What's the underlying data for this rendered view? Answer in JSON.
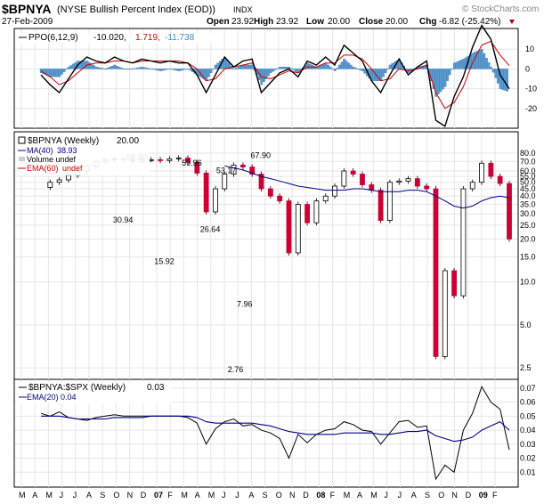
{
  "header": {
    "symbol": "$BPNYA",
    "name": "(NYSE Bullish Percent Index (EOD))",
    "exchange": "INDX",
    "date": "27-Feb-2009",
    "watermark": "© StockCharts.com",
    "quote": {
      "open_label": "Open",
      "open": "23.92",
      "high_label": "High",
      "high": "23.92",
      "low_label": "Low",
      "low": "20.00",
      "close_label": "Close",
      "close": "20.00",
      "chg_label": "Chg",
      "chg": "-6.82 (-25.42%)"
    }
  },
  "chart_data": [
    {
      "type": "line",
      "panel": "ppo",
      "legend": {
        "name": "PPO(6,12,9)",
        "v1": "-10.020,",
        "v2": "1.719,",
        "v3": "-11.738"
      },
      "ylim": [
        -30,
        20
      ],
      "yticks": [
        "10",
        "0",
        "-10",
        "-20"
      ],
      "x": [
        0,
        2,
        4,
        6,
        8,
        10,
        12,
        14,
        16,
        18,
        20,
        22,
        24,
        26,
        28,
        30,
        32,
        34,
        36,
        38,
        40,
        42,
        44,
        46,
        48,
        50,
        52,
        54,
        56,
        58,
        60,
        62,
        64,
        66,
        68,
        70,
        72,
        74,
        76,
        78,
        80,
        82,
        84,
        86,
        88,
        90,
        92,
        94,
        96,
        98,
        100,
        102
      ],
      "series": [
        {
          "role": "ppo",
          "color": "#000000",
          "values": [
            -3,
            -8,
            -12,
            -5,
            2,
            6,
            4,
            3,
            6,
            4,
            3,
            5,
            4,
            3,
            4,
            3,
            3,
            -3,
            -12,
            -3,
            6,
            1,
            4,
            5,
            -12,
            -7,
            -2,
            0,
            -4,
            4,
            2,
            6,
            2,
            12,
            8,
            4,
            -6,
            -12,
            -3,
            5,
            -3,
            1,
            4,
            -26,
            -29,
            -14,
            -4,
            11,
            22,
            15,
            -3,
            -10
          ]
        },
        {
          "role": "signal",
          "color": "#cc0000",
          "values": [
            -1,
            -4,
            -8,
            -6,
            -2,
            2,
            3,
            3,
            4,
            4,
            3,
            4,
            4,
            4,
            4,
            4,
            3,
            0,
            -6,
            -5,
            0,
            1,
            2,
            3,
            -4,
            -5,
            -3,
            -1,
            -2,
            1,
            1,
            3,
            3,
            7,
            7,
            5,
            0,
            -6,
            -5,
            0,
            -1,
            0,
            2,
            -12,
            -20,
            -17,
            -9,
            3,
            12,
            14,
            7,
            1.7
          ]
        }
      ],
      "histogram_color": "#5b9bd5"
    },
    {
      "type": "bar",
      "panel": "price",
      "legend": {
        "name": "$BPNYA (Weekly)",
        "value": "20.00",
        "ma_label": "MA(40)",
        "ma_value": "38.93",
        "vol_label": "Volume undef",
        "ema_label": "EMA(60)",
        "ema_value": "undef"
      },
      "yscale": "log",
      "ylim": [
        2.2,
        80
      ],
      "yticks": [
        "80.0",
        "70.0",
        "60.0",
        "55.0",
        "50.0",
        "45.0",
        "40.0",
        "35.0",
        "30.0",
        "25.0",
        "20.0",
        "15.0",
        "10.0",
        "5.0",
        "2.5"
      ],
      "x": [
        0,
        2,
        4,
        6,
        8,
        10,
        12,
        14,
        16,
        18,
        20,
        22,
        24,
        26,
        28,
        30,
        32,
        34,
        36,
        38,
        40,
        42,
        44,
        46,
        48,
        50,
        52,
        54,
        56,
        58,
        60,
        62,
        64,
        66,
        68,
        70,
        72,
        74,
        76,
        78,
        80,
        82,
        84,
        86,
        88,
        90,
        92,
        94,
        96,
        98,
        100,
        102
      ],
      "close": [
        46,
        50,
        52,
        56,
        60,
        65,
        70,
        72,
        73,
        72,
        70,
        72,
        72,
        71,
        73,
        74,
        69,
        58,
        31,
        45,
        57,
        66,
        64,
        57,
        45,
        40,
        37,
        16,
        35,
        26,
        37,
        40,
        47,
        60,
        57,
        48,
        44,
        27,
        50,
        51,
        53,
        47,
        45,
        3,
        12,
        8,
        45,
        50,
        68,
        55,
        49,
        20
      ],
      "ma40": [
        null,
        null,
        null,
        null,
        null,
        null,
        null,
        null,
        null,
        null,
        null,
        null,
        null,
        null,
        null,
        null,
        null,
        null,
        null,
        null,
        65,
        63,
        61,
        58,
        55,
        53,
        51,
        49,
        47,
        46,
        45,
        44,
        44,
        44,
        45,
        45,
        44,
        43,
        43,
        43,
        44,
        44,
        43,
        40,
        37,
        34,
        33,
        34,
        37,
        39,
        40,
        38.93
      ],
      "annotations": [
        {
          "x": 18,
          "y": 30.94,
          "label": "30.94"
        },
        {
          "x": 21,
          "y": 66.2,
          "label": "66.20"
        },
        {
          "x": 27,
          "y": 15.92,
          "label": "15.92"
        },
        {
          "x": 33,
          "y": 59.96,
          "label": "59.96"
        },
        {
          "x": 37,
          "y": 26.64,
          "label": "26.64"
        },
        {
          "x": 40.5,
          "y": 53.17,
          "label": "53.17"
        },
        {
          "x": 43,
          "y": 2.76,
          "label": "2.76"
        },
        {
          "x": 45,
          "y": 7.96,
          "label": "7.96"
        },
        {
          "x": 48,
          "y": 67.9,
          "label": "67.90"
        }
      ]
    },
    {
      "type": "line",
      "panel": "ratio",
      "legend": {
        "name": "$BPNYA:$SPX (Weekly)",
        "value": "0.03",
        "ema_label": "EMA(20)",
        "ema_value": "0.04"
      },
      "ylim": [
        0,
        0.075
      ],
      "yticks": [
        "0.07",
        "0.06",
        "0.05",
        "0.04",
        "0.03",
        "0.02",
        "0.01"
      ],
      "x": [
        0,
        2,
        4,
        6,
        8,
        10,
        12,
        14,
        16,
        18,
        20,
        22,
        24,
        26,
        28,
        30,
        32,
        34,
        36,
        38,
        40,
        42,
        44,
        46,
        48,
        50,
        52,
        54,
        56,
        58,
        60,
        62,
        64,
        66,
        68,
        70,
        72,
        74,
        76,
        78,
        80,
        82,
        84,
        86,
        88,
        90,
        92,
        94,
        96,
        98,
        100,
        102
      ],
      "series": [
        {
          "role": "ratio",
          "color": "#000000",
          "values": [
            0.052,
            0.05,
            0.053,
            0.049,
            0.048,
            0.047,
            0.049,
            0.05,
            0.051,
            0.05,
            0.05,
            0.05,
            0.05,
            0.05,
            0.05,
            0.05,
            0.049,
            0.045,
            0.03,
            0.041,
            0.046,
            0.048,
            0.043,
            0.044,
            0.04,
            0.038,
            0.034,
            0.02,
            0.037,
            0.031,
            0.037,
            0.04,
            0.041,
            0.046,
            0.044,
            0.04,
            0.039,
            0.03,
            0.038,
            0.046,
            0.047,
            0.042,
            0.043,
            0.005,
            0.015,
            0.01,
            0.04,
            0.052,
            0.071,
            0.06,
            0.055,
            0.026
          ]
        },
        {
          "role": "ema20",
          "color": "#00008b",
          "values": [
            0.05,
            0.05,
            0.05,
            0.049,
            0.048,
            0.048,
            0.048,
            0.048,
            0.049,
            0.049,
            0.049,
            0.049,
            0.05,
            0.05,
            0.05,
            0.05,
            0.05,
            0.049,
            0.046,
            0.045,
            0.045,
            0.045,
            0.045,
            0.045,
            0.044,
            0.043,
            0.041,
            0.039,
            0.038,
            0.037,
            0.037,
            0.037,
            0.037,
            0.038,
            0.038,
            0.038,
            0.038,
            0.037,
            0.037,
            0.038,
            0.039,
            0.039,
            0.04,
            0.036,
            0.034,
            0.032,
            0.033,
            0.035,
            0.04,
            0.043,
            0.046,
            0.04
          ]
        }
      ]
    }
  ],
  "xaxis": {
    "labels": [
      "M",
      "A",
      "M",
      "J",
      "J",
      "A",
      "S",
      "O",
      "N",
      "D",
      "07",
      "F",
      "M",
      "A",
      "M",
      "J",
      "J",
      "A",
      "S",
      "O",
      "N",
      "D",
      "08",
      "F",
      "M",
      "A",
      "M",
      "J",
      "J",
      "A",
      "S",
      "O",
      "N",
      "D",
      "09",
      "F"
    ],
    "bold": [
      "07",
      "08",
      "09"
    ]
  }
}
